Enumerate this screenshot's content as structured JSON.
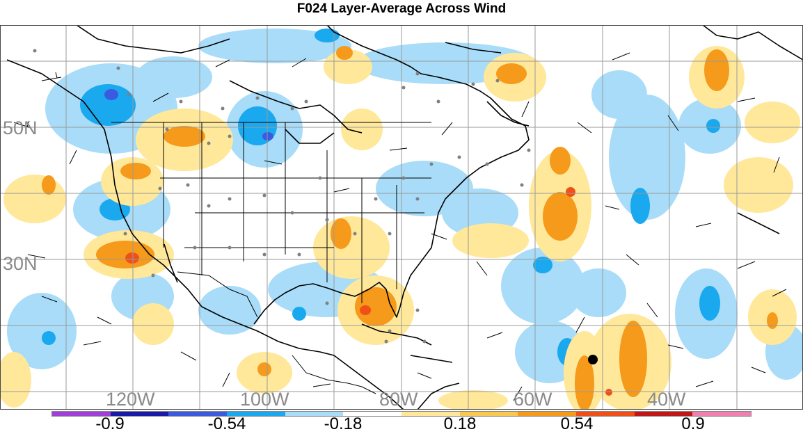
{
  "title": "F024 Layer-Average Across Wind",
  "lat_labels": [
    "50N",
    "30N"
  ],
  "lon_labels": [
    "120W",
    "100W",
    "80W",
    "60W",
    "40W"
  ],
  "colorbar": {
    "colors": [
      "#a040d8",
      "#1a1aa8",
      "#3a5ae0",
      "#1aa8ee",
      "#a8dcf8",
      "#ffffff",
      "#ffe89a",
      "#f8c850",
      "#f59a1a",
      "#f05018",
      "#c01818",
      "#f080b0"
    ],
    "tick_labels": [
      "-0.9",
      "-0.54",
      "-0.18",
      "0.18",
      "0.54",
      "0.9"
    ]
  },
  "shading": {
    "neg_light": "#a8dcf8",
    "neg_mid": "#1aa8ee",
    "neg_dark": "#3a5ae0",
    "pos_light": "#ffe89a",
    "pos_mid": "#f59a1a",
    "pos_dark": "#f05018"
  }
}
